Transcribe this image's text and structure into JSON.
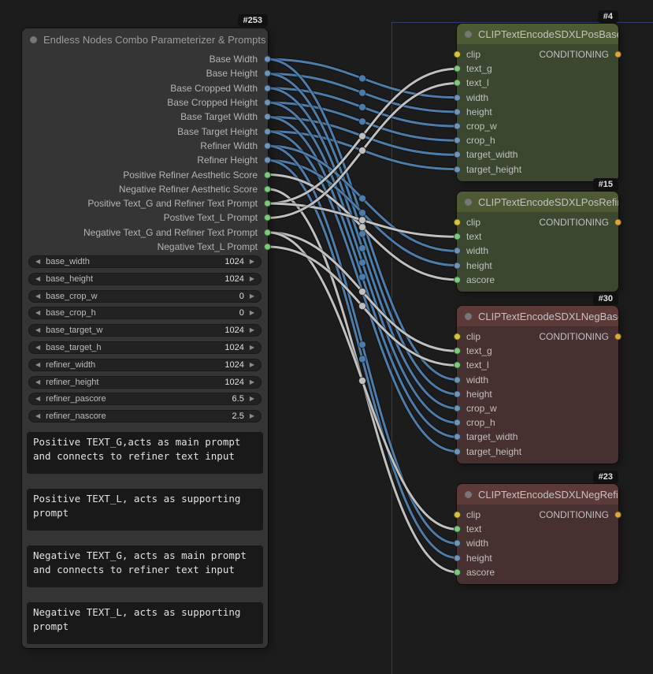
{
  "colors": {
    "bg": "#1c1c1c",
    "node-bg": "#353535",
    "node-title": "#9c9c9c",
    "pos-header": "#4d5a33",
    "pos-body": "#3b472f",
    "neg-header": "#5c3a38",
    "neg-body": "#463030",
    "port-int": "#6e94b7",
    "port-str": "#7dca7d",
    "port-clip": "#d6c53c",
    "port-cond": "#dba43d",
    "link-int": "#4e7ca8",
    "link-txt": "#c0c0c0",
    "badge-bg": "#111111"
  },
  "icons": {
    "dec_arrow": "◀",
    "inc_arrow": "▶"
  },
  "combo": {
    "badge": "#253",
    "title": "Endless Nodes Combo Parameterizer & Prompts",
    "outputs": [
      {
        "label": "Base Width"
      },
      {
        "label": "Base Height"
      },
      {
        "label": "Base Cropped Width"
      },
      {
        "label": "Base Cropped Height"
      },
      {
        "label": "Base Target Width"
      },
      {
        "label": "Base Target Height"
      },
      {
        "label": "Refiner Width"
      },
      {
        "label": "Refiner Height"
      },
      {
        "label": "Positive Refiner Aesthetic Score"
      },
      {
        "label": "Negative Refiner Aesthetic Score"
      },
      {
        "label": "Positive Text_G and Refiner Text Prompt"
      },
      {
        "label": "Postive Text_L Prompt"
      },
      {
        "label": "Negative Text_G and Refiner Text Prompt"
      },
      {
        "label": "Negative Text_L Prompt"
      }
    ],
    "widgets": [
      {
        "name": "base_width",
        "value": "1024"
      },
      {
        "name": "base_height",
        "value": "1024"
      },
      {
        "name": "base_crop_w",
        "value": "0"
      },
      {
        "name": "base_crop_h",
        "value": "0"
      },
      {
        "name": "base_target_w",
        "value": "1024"
      },
      {
        "name": "base_target_h",
        "value": "1024"
      },
      {
        "name": "refiner_width",
        "value": "1024"
      },
      {
        "name": "refiner_height",
        "value": "1024"
      },
      {
        "name": "refiner_pascore",
        "value": "6.5"
      },
      {
        "name": "refiner_nascore",
        "value": "2.5"
      }
    ],
    "textareas": [
      "Positive TEXT_G,acts as main prompt and connects to refiner text input",
      "Positive TEXT_L, acts as supporting prompt",
      "Negative TEXT_G, acts as main prompt and connects to refiner text input",
      "Negative TEXT_L, acts as supporting prompt"
    ]
  },
  "posbase": {
    "badge": "#4",
    "title": "CLIPTextEncodeSDXLPosBase",
    "output": "CONDITIONING",
    "inputs": [
      "clip",
      "text_g",
      "text_l",
      "width",
      "height",
      "crop_w",
      "crop_h",
      "target_width",
      "target_height"
    ]
  },
  "posrefiner": {
    "badge": "#15",
    "title": "CLIPTextEncodeSDXLPosRefiner",
    "output": "CONDITIONING",
    "inputs": [
      "clip",
      "text",
      "width",
      "height",
      "ascore"
    ]
  },
  "negbase": {
    "badge": "#30",
    "title": "CLIPTextEncodeSDXLNegBase",
    "output": "CONDITIONING",
    "inputs": [
      "clip",
      "text_g",
      "text_l",
      "width",
      "height",
      "crop_w",
      "crop_h",
      "target_width",
      "target_height"
    ]
  },
  "negrefiner": {
    "badge": "#23",
    "title": "CLIPTextEncodeSDXLNegRefiner",
    "output": "CONDITIONING",
    "inputs": [
      "clip",
      "text",
      "width",
      "height",
      "ascore"
    ]
  },
  "links": [
    {
      "from": "out-0",
      "to": "pb-width",
      "c": "int"
    },
    {
      "from": "out-1",
      "to": "pb-height",
      "c": "int"
    },
    {
      "from": "out-2",
      "to": "pb-crop_w",
      "c": "int"
    },
    {
      "from": "out-3",
      "to": "pb-crop_h",
      "c": "int"
    },
    {
      "from": "out-4",
      "to": "pb-target_width",
      "c": "int"
    },
    {
      "from": "out-5",
      "to": "pb-target_height",
      "c": "int"
    },
    {
      "from": "out-0",
      "to": "nb-width",
      "c": "int"
    },
    {
      "from": "out-1",
      "to": "nb-height",
      "c": "int"
    },
    {
      "from": "out-2",
      "to": "nb-crop_w",
      "c": "int"
    },
    {
      "from": "out-3",
      "to": "nb-crop_h",
      "c": "int"
    },
    {
      "from": "out-4",
      "to": "nb-target_width",
      "c": "int"
    },
    {
      "from": "out-5",
      "to": "nb-target_height",
      "c": "int"
    },
    {
      "from": "out-6",
      "to": "pr-width",
      "c": "int"
    },
    {
      "from": "out-7",
      "to": "pr-height",
      "c": "int"
    },
    {
      "from": "out-6",
      "to": "nr-width",
      "c": "int"
    },
    {
      "from": "out-7",
      "to": "nr-height",
      "c": "int"
    },
    {
      "from": "out-8",
      "to": "pr-ascore",
      "c": "txt"
    },
    {
      "from": "out-9",
      "to": "nr-ascore",
      "c": "txt"
    },
    {
      "from": "out-10",
      "to": "pb-text_g",
      "c": "txt"
    },
    {
      "from": "out-10",
      "to": "pr-text",
      "c": "txt"
    },
    {
      "from": "out-11",
      "to": "pb-text_l",
      "c": "txt"
    },
    {
      "from": "out-12",
      "to": "nb-text_g",
      "c": "txt"
    },
    {
      "from": "out-12",
      "to": "nr-text",
      "c": "txt"
    },
    {
      "from": "out-13",
      "to": "nb-text_l",
      "c": "txt"
    }
  ]
}
